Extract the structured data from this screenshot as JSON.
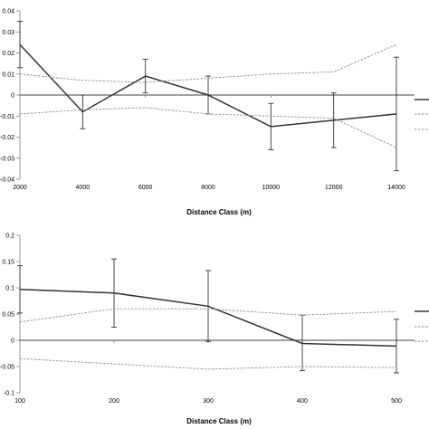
{
  "chart_data": [
    {
      "type": "line",
      "xlabel": "Distance Class (m)",
      "ylabel": "",
      "title": "",
      "ylim": [
        -0.04,
        0.04
      ],
      "yticks": [
        "0.04",
        "0.03",
        "0.02",
        "0.01",
        "0",
        "-0.01",
        "-0.02",
        "-0.03",
        "-0.04"
      ],
      "yticks_values": [
        0.04,
        0.03,
        0.02,
        0.01,
        0,
        -0.01,
        -0.02,
        -0.03,
        -0.04
      ],
      "categories": [
        "2000",
        "4000",
        "6000",
        "8000",
        "10000",
        "12000",
        "14000"
      ],
      "legend_position": "right",
      "series": [
        {
          "style": "solid",
          "values": [
            0.024,
            -0.008,
            0.009,
            0.0,
            -0.015,
            -0.012,
            -0.009
          ],
          "error_upper": [
            0.035,
            0.0,
            0.017,
            0.009,
            -0.004,
            0.001,
            0.018
          ],
          "error_lower": [
            0.013,
            -0.016,
            0.001,
            -0.009,
            -0.026,
            -0.025,
            -0.036
          ]
        },
        {
          "style": "dashed",
          "values": [
            0.01,
            0.007,
            0.006,
            0.008,
            0.01,
            0.011,
            0.024
          ]
        },
        {
          "style": "dashed",
          "values": [
            -0.009,
            -0.007,
            -0.006,
            -0.009,
            -0.01,
            -0.011,
            -0.025
          ]
        }
      ]
    },
    {
      "type": "line",
      "xlabel": "Distance Class (m)",
      "ylabel": "",
      "title": "",
      "ylim": [
        -0.1,
        0.2
      ],
      "yticks": [
        "0.2",
        "0.15",
        "0.1",
        "0.05",
        "0",
        "-0.05",
        "-0.1"
      ],
      "yticks_values": [
        0.2,
        0.15,
        0.1,
        0.05,
        0,
        -0.05,
        -0.1
      ],
      "categories": [
        "100",
        "200",
        "300",
        "400",
        "500"
      ],
      "legend_position": "right",
      "series": [
        {
          "style": "solid",
          "values": [
            0.097,
            0.09,
            0.065,
            -0.006,
            -0.011
          ],
          "error_upper": [
            0.142,
            0.155,
            0.133,
            0.048,
            0.04
          ],
          "error_lower": [
            0.052,
            0.025,
            -0.002,
            -0.058,
            -0.062
          ]
        },
        {
          "style": "dashed",
          "values": [
            0.035,
            0.06,
            0.06,
            0.048,
            0.055
          ]
        },
        {
          "style": "dashed",
          "values": [
            -0.035,
            -0.045,
            -0.055,
            -0.05,
            -0.052
          ]
        }
      ]
    }
  ]
}
